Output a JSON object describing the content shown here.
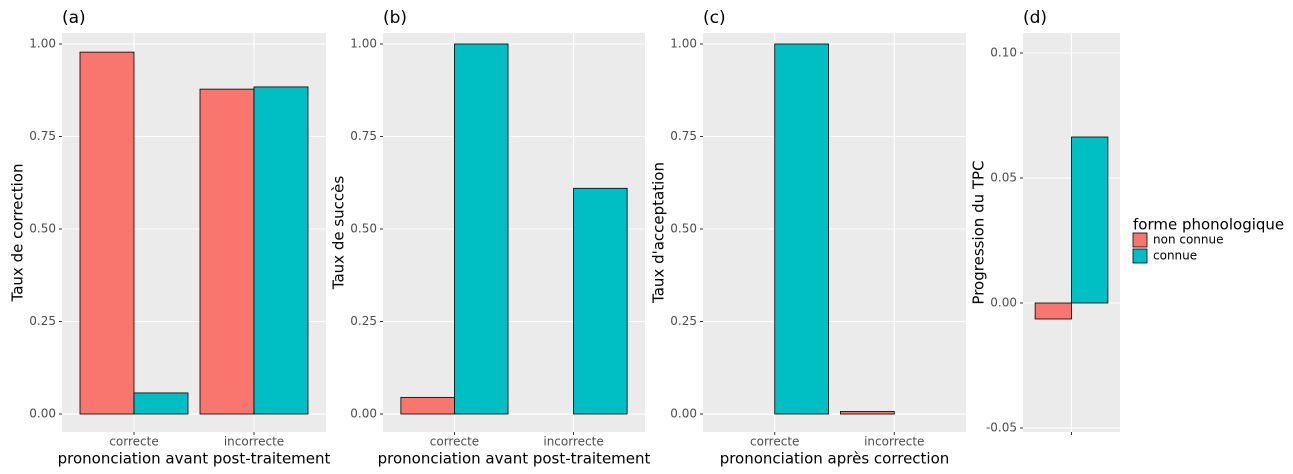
{
  "chart_data": [
    {
      "type": "bar",
      "title": "(a)",
      "ylabel": "Taux de correction",
      "xlabel": "prononciation avant post-traitement",
      "categories": [
        "correcte",
        "incorrecte"
      ],
      "series": [
        {
          "name": "non connue",
          "color": "#F8766D",
          "values": [
            0.978,
            0.878
          ]
        },
        {
          "name": "connue",
          "color": "#00BFC4",
          "values": [
            0.057,
            0.884
          ]
        }
      ],
      "ylim": [
        -0.0486,
        1.0297
      ],
      "yticks": [
        {
          "value": 0,
          "label": "0.00"
        },
        {
          "value": 0.25,
          "label": "0.25"
        },
        {
          "value": 0.5,
          "label": "0.50"
        },
        {
          "value": 0.75,
          "label": "0.75"
        },
        {
          "value": 1,
          "label": "1.00"
        }
      ],
      "grid": true
    },
    {
      "type": "bar",
      "title": "(b)",
      "ylabel": "Taux de succès",
      "xlabel": "prononciation avant post-traitement",
      "categories": [
        "correcte",
        "incorrecte"
      ],
      "series": [
        {
          "name": "non connue",
          "color": "#F8766D",
          "values": [
            0.045,
            0
          ]
        },
        {
          "name": "connue",
          "color": "#00BFC4",
          "values": [
            1,
            0.61
          ]
        }
      ],
      "ylim": [
        -0.0486,
        1.0297
      ],
      "yticks": [
        {
          "value": 0,
          "label": "0.00"
        },
        {
          "value": 0.25,
          "label": "0.25"
        },
        {
          "value": 0.5,
          "label": "0.50"
        },
        {
          "value": 0.75,
          "label": "0.75"
        },
        {
          "value": 1,
          "label": "1.00"
        }
      ],
      "grid": true
    },
    {
      "type": "bar",
      "title": "(c)",
      "ylabel": "Taux d'acceptation",
      "xlabel": "prononciation après correction",
      "categories": [
        "correcte",
        "incorrecte"
      ],
      "series": [
        {
          "name": "non connue",
          "color": "#F8766D",
          "values": [
            0,
            0.007
          ]
        },
        {
          "name": "connue",
          "color": "#00BFC4",
          "values": [
            1,
            0
          ]
        }
      ],
      "ylim": [
        -0.0486,
        1.0297
      ],
      "yticks": [
        {
          "value": 0,
          "label": "0.00"
        },
        {
          "value": 0.25,
          "label": "0.25"
        },
        {
          "value": 0.5,
          "label": "0.50"
        },
        {
          "value": 0.75,
          "label": "0.75"
        },
        {
          "value": 1,
          "label": "1.00"
        }
      ],
      "grid": true
    },
    {
      "type": "bar",
      "title": "(d)",
      "ylabel": "Progression du TPC",
      "categories": [
        null
      ],
      "series": [
        {
          "name": "non connue",
          "color": "#F8766D",
          "values": [
            -0.0064
          ]
        },
        {
          "name": "connue",
          "color": "#00BFC4",
          "values": [
            0.0664
          ]
        }
      ],
      "ylim": [
        -0.0516,
        0.108
      ],
      "yticks": [
        {
          "value": -0.05,
          "label": "-0.05"
        },
        {
          "value": 0,
          "label": "0.00"
        },
        {
          "value": 0.05,
          "label": "0.05"
        },
        {
          "value": 0.1,
          "label": "0.10"
        }
      ],
      "grid": true,
      "legend": "right",
      "legend_title": "forme phonologique"
    }
  ]
}
